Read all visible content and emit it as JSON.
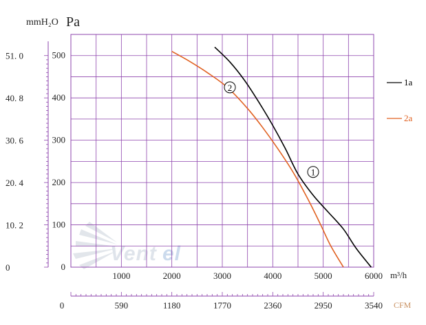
{
  "chart_data": {
    "type": "line",
    "xlabel": "m³/h",
    "x_ticks": [
      "1000",
      "2000",
      "3000",
      "4000",
      "5000",
      "6000"
    ],
    "xlim": [
      0,
      6000
    ],
    "x_grid_step": 500,
    "ylabel": "Pa",
    "y_ticks": [
      "0",
      "100",
      "200",
      "300",
      "400",
      "500"
    ],
    "ylim": [
      0,
      550
    ],
    "y_grid_step": 50,
    "y2label": "mmH₂O",
    "y2_ticks": [
      "0",
      "10. 2",
      "20. 4",
      "30. 6",
      "40. 8",
      "51. 0"
    ],
    "x2label": "CFM",
    "x2_ticks": [
      "0",
      "590",
      "1180",
      "1770",
      "2360",
      "2950",
      "3540"
    ],
    "grid": true,
    "legend_position": "right",
    "colors": {
      "grid": "#8e44ad",
      "series_1a": "#000000",
      "series_2a": "#e06020"
    },
    "series": [
      {
        "name": "1a",
        "marker": "1",
        "color": "#000000",
        "x": [
          2850,
          3150,
          3450,
          3750,
          4000,
          4250,
          4500,
          4800,
          5100,
          5400,
          5650,
          5950
        ],
        "y": [
          520,
          485,
          440,
          385,
          335,
          280,
          220,
          170,
          130,
          90,
          45,
          0
        ]
      },
      {
        "name": "2a",
        "marker": "2",
        "color": "#e06020",
        "x": [
          2000,
          2300,
          2700,
          3100,
          3500,
          3800,
          4100,
          4400,
          4700,
          4950,
          5150,
          5400
        ],
        "y": [
          510,
          490,
          460,
          425,
          375,
          330,
          280,
          225,
          160,
          100,
          50,
          0
        ]
      }
    ],
    "marker_positions": [
      {
        "series": "1a",
        "x": 4800,
        "y": 225
      },
      {
        "series": "2a",
        "x": 3150,
        "y": 425
      }
    ]
  },
  "watermark": "Ventel"
}
